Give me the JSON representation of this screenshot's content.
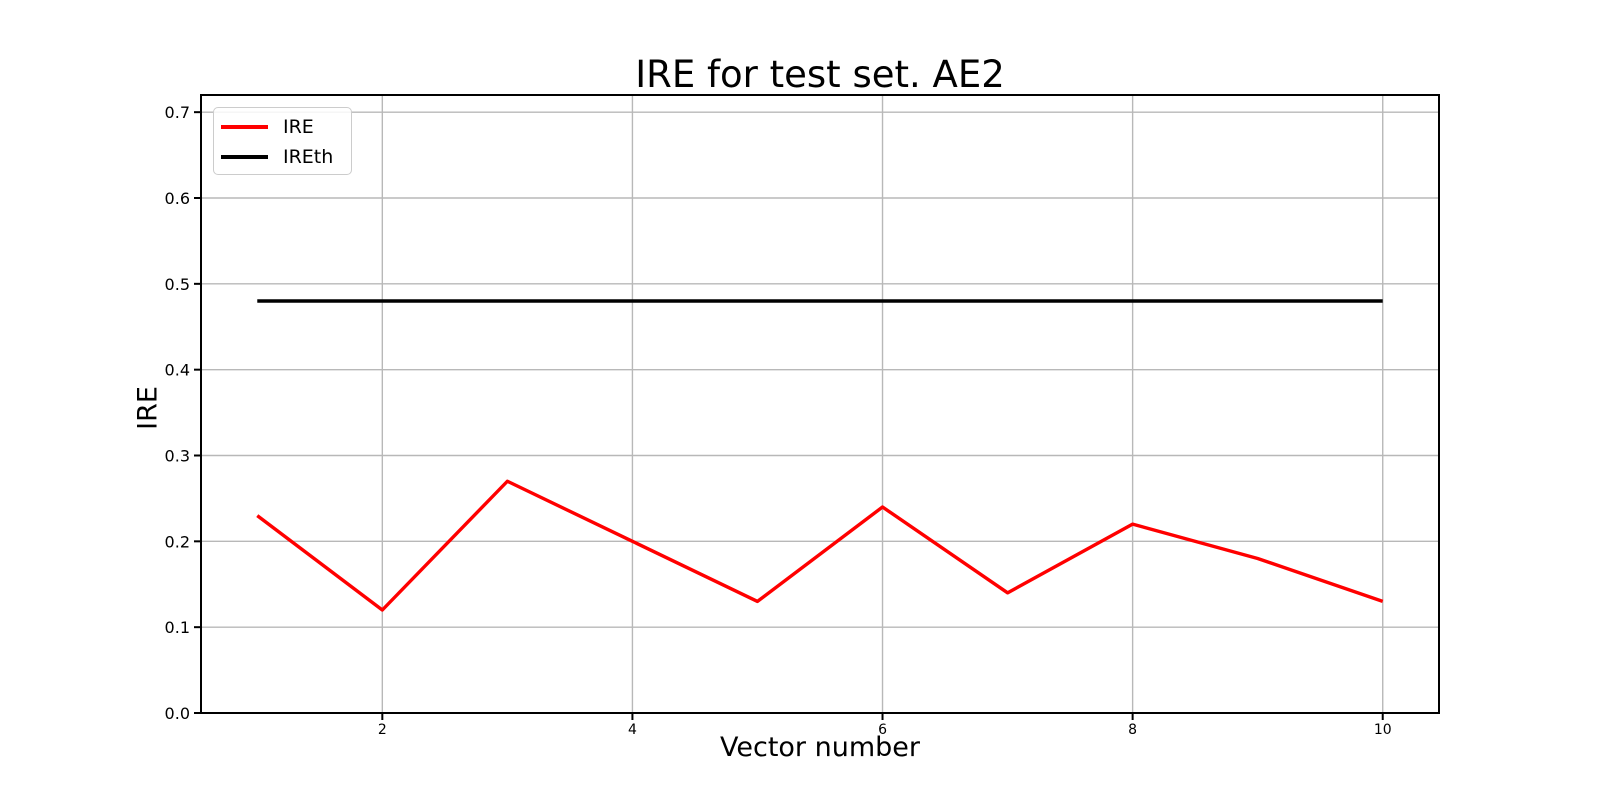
{
  "chart_data": {
    "type": "line",
    "title": "IRE for test set. AE2",
    "xlabel": "Vector number",
    "ylabel": "IRE",
    "x": [
      1,
      2,
      3,
      4,
      5,
      6,
      7,
      8,
      9,
      10
    ],
    "series": [
      {
        "name": "IRE",
        "color": "#ff0000",
        "values": [
          0.23,
          0.12,
          0.27,
          0.2,
          0.13,
          0.24,
          0.14,
          0.22,
          0.18,
          0.13
        ]
      },
      {
        "name": "IREth",
        "color": "#000000",
        "values": [
          0.48,
          0.48,
          0.48,
          0.48,
          0.48,
          0.48,
          0.48,
          0.48,
          0.48,
          0.48
        ]
      }
    ],
    "xlim": [
      0.55,
      10.45
    ],
    "ylim": [
      0.0,
      0.72
    ],
    "xticks": [
      2,
      4,
      6,
      8,
      10
    ],
    "yticks": [
      0.0,
      0.1,
      0.2,
      0.3,
      0.4,
      0.5,
      0.6,
      0.7
    ],
    "grid": true,
    "grid_color": "#b8b8b8",
    "axis_color": "#000000",
    "background": "#ffffff",
    "legend": {
      "position": "upper left",
      "border_color": "#cccccc",
      "entries": [
        "IRE",
        "IREth"
      ]
    }
  }
}
